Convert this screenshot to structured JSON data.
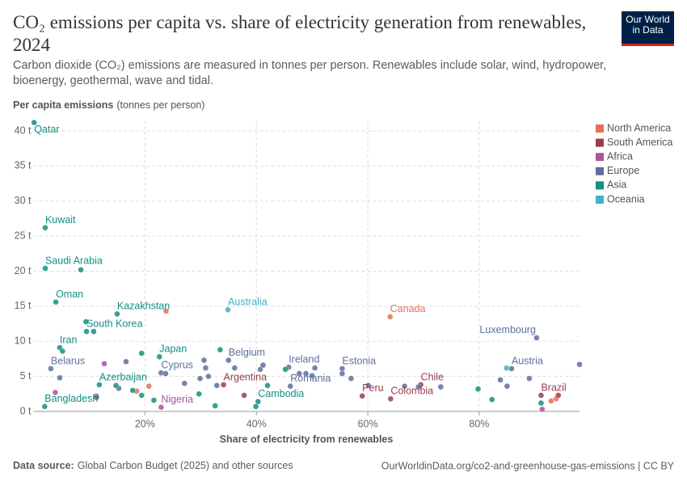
{
  "chart_data": {
    "type": "scatter",
    "title": "CO₂ emissions per capita vs. share of electricity generation from renewables, 2024",
    "subtitle": "Carbon dioxide (CO₂) emissions are measured in tonnes per person. Renewables include solar, wind, hydropower, bioenergy, geothermal, wave and tidal.",
    "logo": {
      "line1": "Our World",
      "line2": "in Data"
    },
    "y_label": "Per capita emissions",
    "y_label_note": "(tonnes per person)",
    "x_label": "Share of electricity from renewables",
    "source_label": "Data source:",
    "source": "Global Carbon Budget (2025) and other sources",
    "footer_right": "OurWorldinData.org/co2-and-greenhouse-gas-emissions | CC BY",
    "xlim": [
      0,
      98
    ],
    "ylim": [
      0,
      41.5
    ],
    "xticks": [
      {
        "value": 20,
        "label": "20%"
      },
      {
        "value": 40,
        "label": "40%"
      },
      {
        "value": 60,
        "label": "60%"
      },
      {
        "value": 80,
        "label": "80%"
      }
    ],
    "yticks": [
      {
        "value": 0,
        "label": "0 t"
      },
      {
        "value": 5,
        "label": "5 t"
      },
      {
        "value": 10,
        "label": "10 t"
      },
      {
        "value": 15,
        "label": "15 t"
      },
      {
        "value": 20,
        "label": "20 t"
      },
      {
        "value": 25,
        "label": "25 t"
      },
      {
        "value": 30,
        "label": "30 t"
      },
      {
        "value": 35,
        "label": "35 t"
      },
      {
        "value": 40,
        "label": "40 t"
      }
    ],
    "grid": true,
    "legend": "right",
    "series": [
      {
        "name": "North America",
        "color": "#e56e5a",
        "x": [
          64.0,
          23.8,
          20.7,
          18.5,
          92.9,
          93.8
        ],
        "values": [
          13.5,
          14.3,
          3.6,
          2.9,
          1.5,
          1.8
        ],
        "labels": [
          "Canada",
          null,
          null,
          null,
          null,
          null
        ]
      },
      {
        "name": "South America",
        "color": "#9a3e4c",
        "x": [
          34.1,
          37.8,
          59.0,
          64.1,
          69.5,
          91.1,
          94.2
        ],
        "values": [
          3.8,
          2.3,
          2.2,
          1.8,
          3.8,
          2.3,
          2.3
        ],
        "labels": [
          "Argentina",
          null,
          "Peru",
          "Colombia",
          "Chile",
          "Brazil",
          null
        ]
      },
      {
        "name": "Africa",
        "color": "#a8549e",
        "x": [
          12.7,
          3.9,
          11.3,
          22.9,
          91.3
        ],
        "values": [
          6.8,
          2.7,
          2.2,
          0.6,
          0.3
        ],
        "labels": [
          null,
          null,
          null,
          "Nigeria",
          null
        ]
      },
      {
        "name": "Europe",
        "color": "#5d6f9c",
        "x": [
          3.1,
          4.7,
          16.6,
          15.3,
          11.3,
          22.9,
          23.7,
          27.1,
          29.9,
          30.6,
          30.9,
          31.4,
          32.9,
          35.0,
          36.1,
          40.7,
          41.2,
          45.8,
          46.1,
          47.7,
          48.9,
          50.0,
          50.5,
          55.4,
          55.4,
          57.0,
          60.1,
          66.6,
          69.1,
          73.1,
          83.8,
          85.8,
          85.0,
          89.0,
          90.3,
          98.0
        ],
        "values": [
          6.1,
          4.8,
          7.1,
          3.3,
          2.0,
          5.5,
          5.4,
          4.0,
          4.7,
          7.3,
          6.2,
          5.0,
          3.7,
          7.3,
          6.2,
          6.0,
          6.6,
          6.3,
          3.6,
          5.4,
          5.4,
          5.1,
          6.2,
          6.1,
          5.4,
          4.7,
          3.7,
          3.6,
          3.5,
          3.5,
          4.5,
          6.1,
          3.6,
          4.7,
          10.5,
          6.7
        ],
        "labels": [
          "Belarus",
          null,
          null,
          null,
          null,
          "Cyprus",
          null,
          null,
          null,
          null,
          null,
          null,
          null,
          "Belgium",
          null,
          null,
          null,
          "Ireland",
          "Romania",
          null,
          null,
          null,
          null,
          "Estonia",
          null,
          null,
          null,
          null,
          null,
          null,
          null,
          "Austria",
          null,
          null,
          "Luxembourg",
          null
        ]
      },
      {
        "name": "Asia",
        "color": "#148f80",
        "x": [
          0.1,
          2.1,
          2.1,
          8.5,
          4.0,
          15.0,
          9.5,
          9.4,
          10.8,
          4.7,
          5.2,
          22.6,
          19.4,
          33.5,
          11.8,
          14.8,
          17.8,
          19.4,
          21.6,
          29.7,
          32.6,
          2.0,
          40.3,
          39.9,
          42.0,
          45.2,
          79.8,
          82.3,
          91.1
        ],
        "values": [
          41.2,
          26.2,
          20.4,
          20.2,
          15.6,
          13.9,
          11.4,
          12.8,
          11.4,
          9.1,
          8.6,
          7.8,
          8.3,
          8.8,
          3.8,
          3.7,
          3.0,
          2.3,
          1.6,
          2.5,
          0.8,
          0.7,
          1.4,
          0.7,
          3.7,
          6.0,
          3.2,
          1.7,
          1.2
        ],
        "labels": [
          "Qatar",
          "Kuwait",
          "Saudi Arabia",
          null,
          "Oman",
          "Kazakhstan",
          "South Korea",
          null,
          null,
          "Iran",
          null,
          "Japan",
          null,
          null,
          "Azerbaijan",
          null,
          null,
          null,
          null,
          null,
          null,
          "Bangladesh",
          "Cambodia",
          null,
          null,
          null,
          null,
          null,
          null
        ]
      },
      {
        "name": "Oceania",
        "color": "#44b0c4",
        "x": [
          34.9,
          84.9
        ],
        "values": [
          14.5,
          6.2
        ],
        "labels": [
          "Australia",
          null
        ]
      }
    ]
  }
}
